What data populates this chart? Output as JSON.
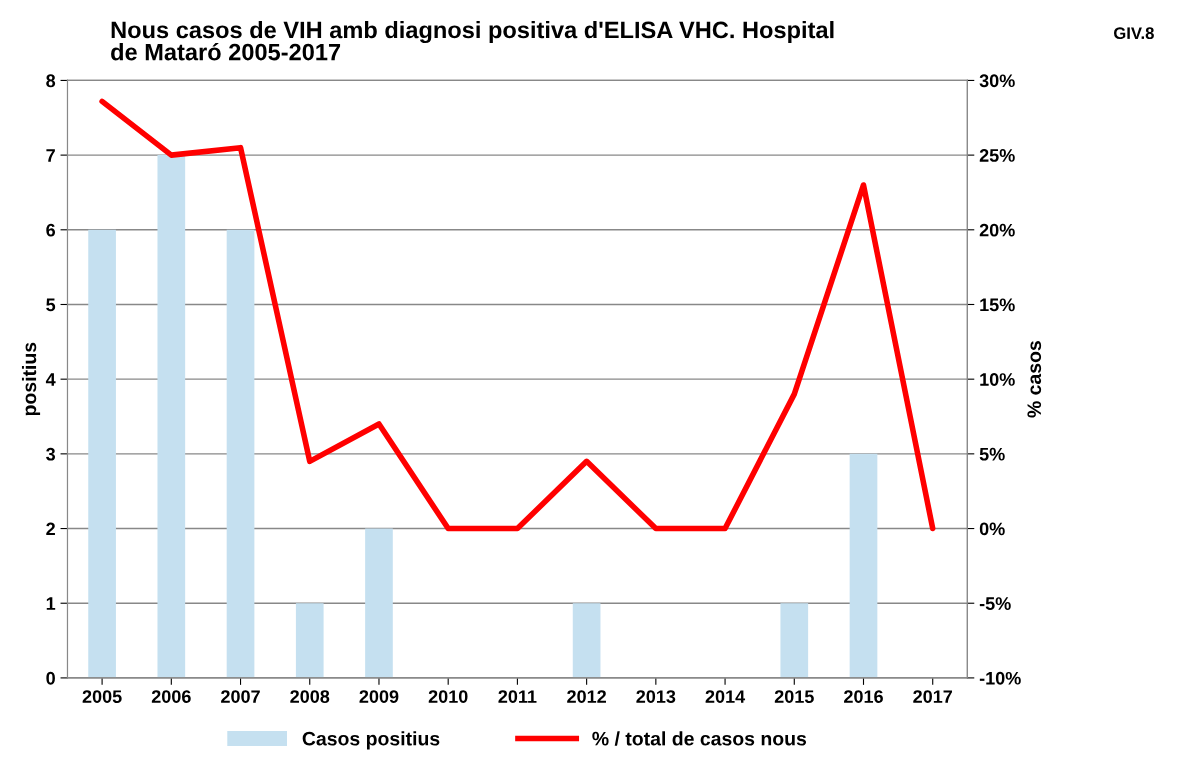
{
  "chart_data": {
    "type": "bar",
    "title": "Nous casos de VIH amb diagnosi positiva d'ELISA VHC. Hospital\nde Mataró 2005-2017",
    "categories": [
      "2005",
      "2006",
      "2007",
      "2008",
      "2009",
      "2010",
      "2011",
      "2012",
      "2013",
      "2014",
      "2015",
      "2016",
      "2017"
    ],
    "series": [
      {
        "name": "Casos positius",
        "color": "#c5e0f0",
        "values": [
          6,
          7,
          6,
          1,
          2,
          0,
          0,
          1,
          0,
          0,
          1,
          3,
          0
        ]
      },
      {
        "name": "% / total de casos nous",
        "type": "line",
        "axis": "y2",
        "color": "#ff0000",
        "values": [
          28.6,
          25,
          25.5,
          4.5,
          7,
          0,
          0,
          4.5,
          0,
          0,
          9,
          23,
          0
        ]
      }
    ],
    "ylabel": "positius",
    "y2label": "% casos",
    "ylim": [
      0,
      8
    ],
    "yticks": [
      0,
      1,
      2,
      3,
      4,
      5,
      6,
      7,
      8
    ],
    "y2lim": [
      -10,
      30
    ],
    "y2ticks": [
      {
        "value": -10,
        "label": "-10%"
      },
      {
        "value": -5,
        "label": "-5%"
      },
      {
        "value": 0,
        "label": "0%"
      },
      {
        "value": 5,
        "label": "5%"
      },
      {
        "value": 10,
        "label": "10%"
      },
      {
        "value": 15,
        "label": "15%"
      },
      {
        "value": 20,
        "label": "20%"
      },
      {
        "value": 25,
        "label": "25%"
      },
      {
        "value": 30,
        "label": "30%"
      }
    ],
    "annotations": [
      "GIV.8"
    ],
    "grid": "y",
    "legend": "bottom",
    "marker": "none",
    "line_style": "solid"
  }
}
